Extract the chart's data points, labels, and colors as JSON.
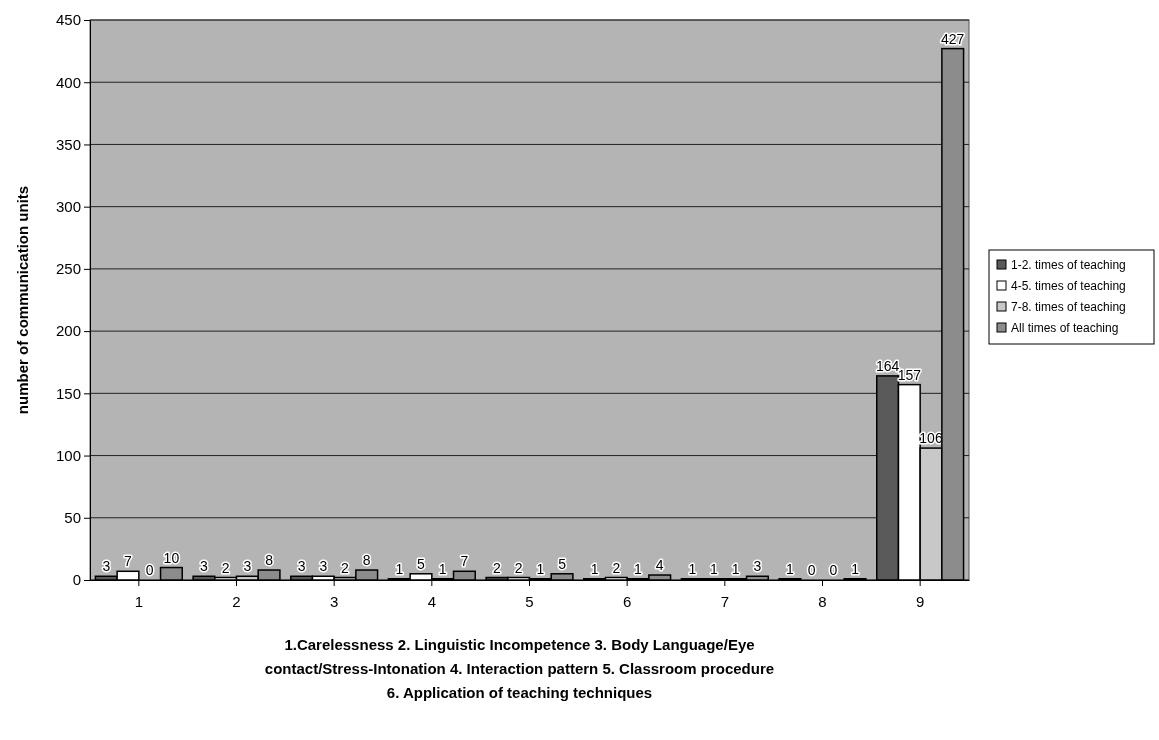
{
  "chart_data": {
    "type": "bar",
    "categories": [
      "1",
      "2",
      "3",
      "4",
      "5",
      "6",
      "7",
      "8",
      "9"
    ],
    "series": [
      {
        "name": "1-2. times of teaching",
        "color": "#5a5a5a",
        "values": [
          3,
          3,
          3,
          1,
          2,
          1,
          1,
          1,
          164
        ]
      },
      {
        "name": "4-5. times of teaching",
        "color": "#ffffff",
        "values": [
          7,
          2,
          3,
          5,
          2,
          2,
          1,
          0,
          157
        ]
      },
      {
        "name": "7-8. times of teaching",
        "color": "#c8c8c8",
        "values": [
          0,
          3,
          2,
          1,
          1,
          1,
          1,
          0,
          106
        ]
      },
      {
        "name": "All times of teaching",
        "color": "#8c8c8c",
        "values": [
          10,
          8,
          8,
          7,
          5,
          4,
          3,
          1,
          427
        ]
      }
    ],
    "ylabel": "number of communication units",
    "xlabel": "1.Carelessness 2. Linguistic Incompetence 3. Body Language/Eye contact/Stress-Intonation 4. Interaction pattern 5. Classroom procedure 6. Application of teaching techniques",
    "ylim": [
      0,
      450
    ],
    "yticks": [
      0,
      50,
      100,
      150,
      200,
      250,
      300,
      350,
      400,
      450
    ],
    "grid": "y",
    "legend": "right",
    "data_labels": true
  }
}
